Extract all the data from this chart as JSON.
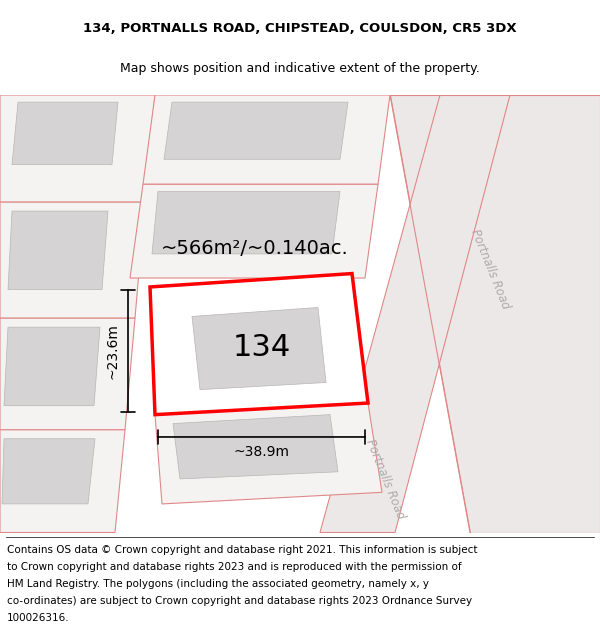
{
  "title_line1": "134, PORTNALLS ROAD, CHIPSTEAD, COULSDON, CR5 3DX",
  "title_line2": "Map shows position and indicative extent of the property.",
  "area_label": "~566m²/~0.140ac.",
  "number_label": "134",
  "width_label": "~38.9m",
  "height_label": "~23.6m",
  "road_label_upper": "Portnalls Road",
  "road_label_lower": "Portnalls Road",
  "bg_color": "#f0eeee",
  "plot_line_color": "#ff0000",
  "road_line_color": "#e08888",
  "title_fontsize": 9.5,
  "subtitle_fontsize": 9,
  "footer_fontsize": 7.5,
  "label_fontsize": 14,
  "number_fontsize": 22,
  "footer_lines": [
    "Contains OS data © Crown copyright and database right 2021. This information is subject",
    "to Crown copyright and database rights 2023 and is reproduced with the permission of",
    "HM Land Registry. The polygons (including the associated geometry, namely x, y",
    "co-ordinates) are subject to Crown copyright and database rights 2023 Ordnance Survey",
    "100026316."
  ]
}
